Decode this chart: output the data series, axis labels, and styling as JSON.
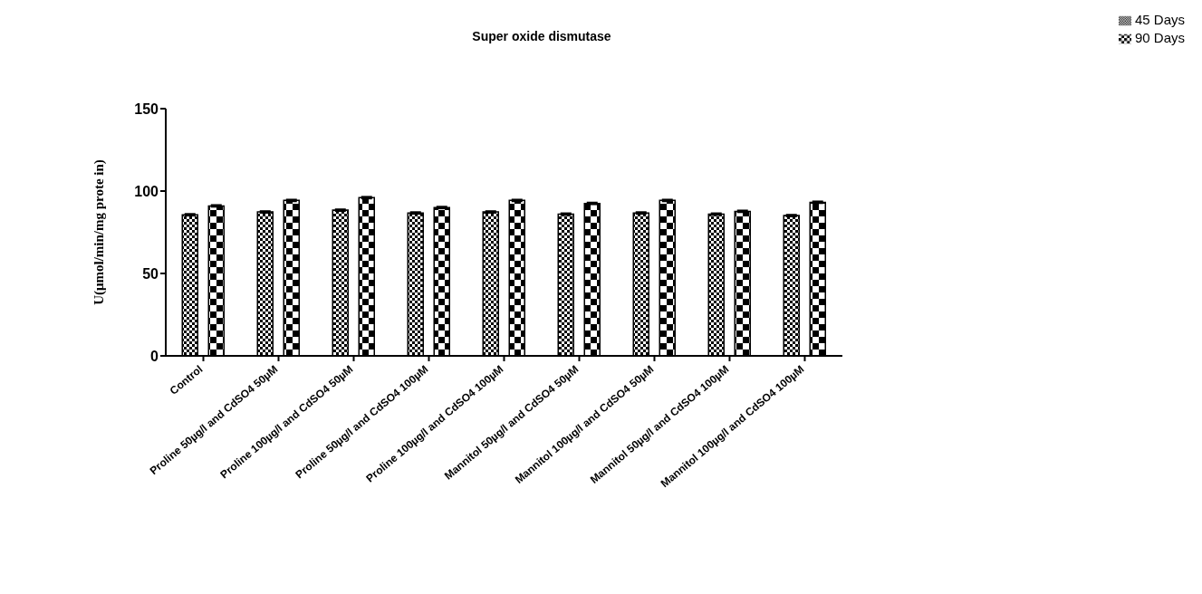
{
  "chart_data": {
    "type": "bar",
    "title": "Super oxide dismutase",
    "ylabel": "U(μmol/min/mg prote in)",
    "categories": [
      "Control",
      "Proline 50µg/l and CdSO4 50µM",
      "Proline 100µg/l and CdSO4 50µM",
      "Proline 50µg/l and CdSO4 100µM",
      "Proline 100µg/l and CdSO4 100µM",
      "Mannitol 50µg/l and CdSO4 50µM",
      "Mannitol 100µg/l and CdSO4 50µM",
      "Mannitol 50µg/l and CdSO4 100µM",
      "Mannitol 100µg/l and CdSO4 100µM"
    ],
    "series": [
      {
        "name": "45 Days",
        "color": "#000000",
        "values": [
          85.6,
          87.3,
          88.4,
          86.7,
          87.3,
          86.0,
          86.7,
          86.0,
          85.1
        ],
        "errors": [
          0.5,
          0.5,
          0.5,
          0.5,
          0.5,
          0.5,
          0.5,
          0.5,
          0.5
        ]
      },
      {
        "name": "90 Days",
        "color": "#000000",
        "values": [
          91.0,
          94.3,
          96.0,
          90.0,
          94.3,
          92.5,
          94.3,
          87.7,
          93.2
        ],
        "errors": [
          0.5,
          0.5,
          0.5,
          0.5,
          0.5,
          0.5,
          0.5,
          0.5,
          0.5
        ]
      }
    ],
    "ylim": [
      0,
      150
    ],
    "yticks": [
      0,
      50,
      100,
      150
    ],
    "grid": false,
    "legend": "top right"
  }
}
